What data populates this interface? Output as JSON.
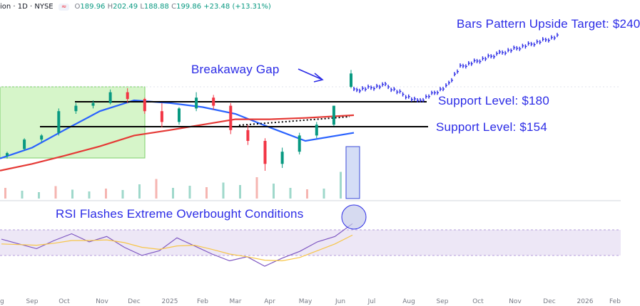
{
  "header": {
    "symbol_info": "ion · 1D · NYSE",
    "indicator_badge": "≈",
    "open_label": "O",
    "open_value": "189.96",
    "high_label": "H",
    "high_value": "202.49",
    "low_label": "L",
    "low_value": "188.88",
    "close_label": "C",
    "close_value": "199.86",
    "change": "+23.48 (+13.31%)"
  },
  "annotations": {
    "target": "Bars Pattern Upside Target: $240",
    "gap": "Breakaway Gap",
    "support_180": "Support Level: $180",
    "support_154": "Support Level: $154",
    "rsi": "RSI Flashes Extreme Overbought Conditions"
  },
  "colors": {
    "annotation": "#2b2be6",
    "candle_up": "#089981",
    "candle_down": "#f23645",
    "ma50": "#2962ff",
    "ma200": "#e53935",
    "rsi_line": "#7e57c2",
    "rsi_ma": "#f7c548",
    "rsi_band": "#ede7f6",
    "consolidation_box": "#d6f5c9",
    "projection": "#2b2be6"
  },
  "chart_data": [
    {
      "type": "candlestick",
      "x_axis_labels": [
        "g",
        "Sep",
        "Oct",
        "Nov",
        "Dec",
        "2025",
        "Feb",
        "Mar",
        "Apr",
        "May",
        "Jun",
        "Jul",
        "Aug",
        "Sep",
        "Oct",
        "Nov",
        "Dec",
        "2026",
        "Feb"
      ],
      "price_range": [
        130,
        240
      ],
      "support_levels": [
        180,
        154
      ],
      "candles": [
        {
          "month": "Aug",
          "o": 139,
          "h": 142,
          "l": 137,
          "c": 141
        },
        {
          "month": "Sep",
          "o": 144,
          "h": 152,
          "l": 143,
          "c": 151
        },
        {
          "month": "Sep",
          "o": 151,
          "h": 155,
          "l": 149,
          "c": 154
        },
        {
          "month": "Oct",
          "o": 156,
          "h": 174,
          "l": 154,
          "c": 172
        },
        {
          "month": "Oct",
          "o": 172,
          "h": 178,
          "l": 170,
          "c": 176
        },
        {
          "month": "Nov",
          "o": 176,
          "h": 180,
          "l": 174,
          "c": 178
        },
        {
          "month": "Nov",
          "o": 178,
          "h": 188,
          "l": 177,
          "c": 186
        },
        {
          "month": "Dec",
          "o": 186,
          "h": 189,
          "l": 178,
          "c": 181
        },
        {
          "month": "Dec",
          "o": 181,
          "h": 182,
          "l": 170,
          "c": 172
        },
        {
          "month": "Jan",
          "o": 172,
          "h": 178,
          "l": 160,
          "c": 164
        },
        {
          "month": "Jan",
          "o": 164,
          "h": 175,
          "l": 162,
          "c": 174
        },
        {
          "month": "Feb",
          "o": 174,
          "h": 186,
          "l": 172,
          "c": 182
        },
        {
          "month": "Feb",
          "o": 182,
          "h": 184,
          "l": 173,
          "c": 176
        },
        {
          "month": "Mar",
          "o": 176,
          "h": 178,
          "l": 155,
          "c": 158
        },
        {
          "month": "Mar",
          "o": 158,
          "h": 162,
          "l": 147,
          "c": 150
        },
        {
          "month": "Apr",
          "o": 150,
          "h": 152,
          "l": 126,
          "c": 133
        },
        {
          "month": "Apr",
          "o": 133,
          "h": 145,
          "l": 130,
          "c": 142
        },
        {
          "month": "May",
          "o": 142,
          "h": 156,
          "l": 140,
          "c": 154
        },
        {
          "month": "May",
          "o": 154,
          "h": 164,
          "l": 152,
          "c": 162
        },
        {
          "month": "Jun",
          "o": 162,
          "h": 176,
          "l": 161,
          "c": 176
        },
        {
          "month": "Jun",
          "o": 189.96,
          "h": 202.49,
          "l": 188.88,
          "c": 199.86
        }
      ],
      "ma50": [
        {
          "month": "Aug",
          "value": 137
        },
        {
          "month": "Sep",
          "value": 145
        },
        {
          "month": "Oct",
          "value": 158
        },
        {
          "month": "Nov",
          "value": 172
        },
        {
          "month": "Dec",
          "value": 180
        },
        {
          "month": "Jan",
          "value": 178
        },
        {
          "month": "Feb",
          "value": 175
        },
        {
          "month": "Mar",
          "value": 170
        },
        {
          "month": "Apr",
          "value": 160
        },
        {
          "month": "May",
          "value": 150
        },
        {
          "month": "Jun",
          "value": 156
        }
      ],
      "ma200": [
        {
          "month": "Aug",
          "value": 128
        },
        {
          "month": "Sep",
          "value": 133
        },
        {
          "month": "Oct",
          "value": 139
        },
        {
          "month": "Nov",
          "value": 146
        },
        {
          "month": "Dec",
          "value": 154
        },
        {
          "month": "Jan",
          "value": 158
        },
        {
          "month": "Feb",
          "value": 162
        },
        {
          "month": "Mar",
          "value": 166
        },
        {
          "month": "Apr",
          "value": 166
        },
        {
          "month": "May",
          "value": 167
        },
        {
          "month": "Jun",
          "value": 169
        }
      ],
      "projection": [
        {
          "month": "Jun",
          "value": 199
        },
        {
          "month": "Jul",
          "value": 201
        },
        {
          "month": "Aug",
          "value": 181
        },
        {
          "month": "Sep",
          "value": 199
        },
        {
          "month": "Oct",
          "value": 222
        },
        {
          "month": "Nov",
          "value": 226
        },
        {
          "month": "Dec",
          "value": 240
        }
      ],
      "volume": {
        "unit": "relative",
        "values": [
          30,
          22,
          18,
          35,
          25,
          20,
          28,
          24,
          40,
          55,
          30,
          36,
          32,
          45,
          38,
          60,
          42,
          30,
          26,
          28,
          75
        ]
      }
    },
    {
      "type": "line",
      "name": "RSI",
      "ylim": [
        0,
        100
      ],
      "band": [
        30,
        70
      ],
      "series": [
        {
          "name": "RSI",
          "values": [
            62,
            55,
            48,
            60,
            70,
            58,
            66,
            50,
            38,
            45,
            64,
            52,
            40,
            30,
            36,
            22,
            34,
            44,
            58,
            66,
            85
          ]
        },
        {
          "name": "RSI MA",
          "values": [
            55,
            54,
            53,
            56,
            60,
            60,
            61,
            57,
            50,
            47,
            52,
            53,
            47,
            40,
            36,
            31,
            30,
            35,
            45,
            55,
            68
          ]
        }
      ]
    }
  ]
}
